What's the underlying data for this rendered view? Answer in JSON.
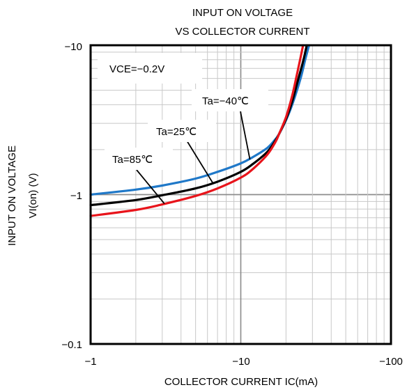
{
  "chart_data": {
    "type": "line",
    "title": [
      "INPUT ON VOLTAGE",
      "VS COLLECTOR CURRENT"
    ],
    "xlabel": "COLLECTOR CURRENT  IC(mA)",
    "ylabel": [
      "INPUT ON VOLTAGE",
      "VI(on) (V)"
    ],
    "x_scale": "log",
    "y_scale": "log",
    "xlim": [
      -1,
      -100
    ],
    "ylim": [
      -0.1,
      -10
    ],
    "x_ticks": [
      "−1",
      "−10",
      "−100"
    ],
    "y_ticks": [
      "−10",
      "−1",
      "−0.1"
    ],
    "grid": true,
    "condition": "VCE=−0.2V",
    "series": [
      {
        "name": "Ta=−40℃",
        "color": "#1f78c8",
        "x": [
          -1,
          -2,
          -3,
          -5,
          -7,
          -10,
          -12,
          -15,
          -17,
          -18,
          -20,
          -22,
          -25,
          -27,
          -28.5
        ],
        "y": [
          -1.0,
          -1.08,
          -1.15,
          -1.28,
          -1.42,
          -1.62,
          -1.78,
          -2.05,
          -2.35,
          -2.55,
          -3.15,
          -4.0,
          -6.0,
          -8.2,
          -10
        ]
      },
      {
        "name": "Ta=25℃",
        "color": "#000000",
        "x": [
          -1,
          -2,
          -3,
          -5,
          -7,
          -10,
          -12,
          -15,
          -17,
          -18,
          -20,
          -22,
          -24,
          -26,
          -27.5
        ],
        "y": [
          -0.85,
          -0.92,
          -0.99,
          -1.1,
          -1.22,
          -1.42,
          -1.6,
          -1.93,
          -2.3,
          -2.55,
          -3.2,
          -4.2,
          -5.8,
          -7.8,
          -10
        ]
      },
      {
        "name": "Ta=85℃",
        "color": "#e8141b",
        "x": [
          -1,
          -2,
          -3,
          -5,
          -7,
          -10,
          -12,
          -15,
          -17,
          -18,
          -20,
          -22,
          -23.5,
          -25,
          -26
        ],
        "y": [
          -0.72,
          -0.79,
          -0.86,
          -0.98,
          -1.1,
          -1.3,
          -1.48,
          -1.85,
          -2.25,
          -2.55,
          -3.3,
          -4.6,
          -6.2,
          -8.3,
          -10
        ]
      }
    ],
    "annotations": [
      {
        "text": "Ta=−40℃",
        "series": 0,
        "x": -11.5,
        "y": -1.72
      },
      {
        "text": "Ta=25℃",
        "series": 1,
        "x": -6.5,
        "y": -1.2
      },
      {
        "text": "Ta=85℃",
        "series": 2,
        "x": -3.1,
        "y": -0.87
      }
    ]
  }
}
